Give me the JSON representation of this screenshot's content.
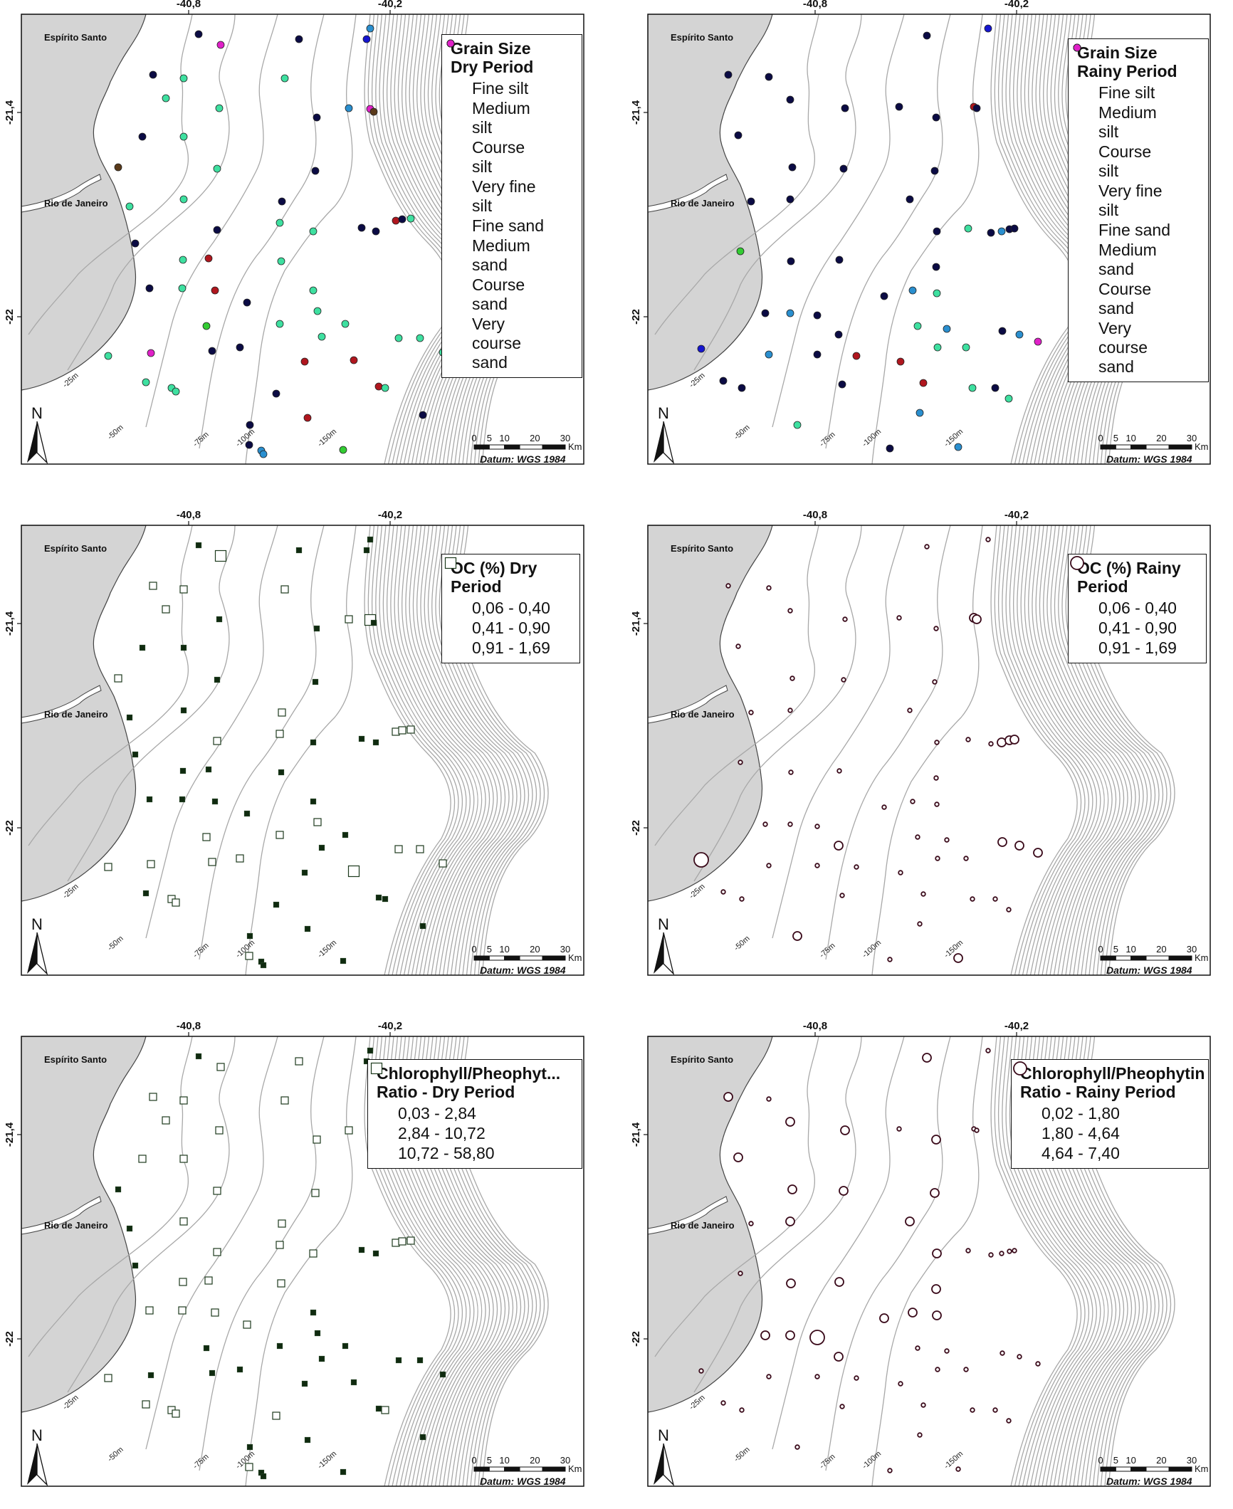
{
  "map_common": {
    "axis_top": [
      "-40,8",
      "-40,2"
    ],
    "axis_left": [
      "-21,4",
      "-22"
    ],
    "states": [
      "Espírito Santo",
      "Rio de Janeiro"
    ],
    "contours": [
      "-25m",
      "-50m",
      "-75m",
      "-100m",
      "-150m"
    ],
    "north_label": "N",
    "scale_ticks": [
      "0",
      "5",
      "10",
      "20",
      "30"
    ],
    "scale_unit": "Km",
    "datum": "Datum: WGS 1984",
    "colors": {
      "land": "#d4d4d4",
      "contour": "#a8a8a8",
      "frame": "#111111"
    }
  },
  "panels": [
    {
      "id": "grain-dry",
      "legend_title": "Grain Size\nDry Period",
      "legend_type": "color",
      "legend_items": [
        {
          "label": "Fine silt",
          "color": "#5a3a1a"
        },
        {
          "label": "Medium\nsilt",
          "color": "#1515d0"
        },
        {
          "label": "Course\nsilt",
          "color": "#33cc33"
        },
        {
          "label": "Very fine\nsilt",
          "color": "#2a8fcf"
        },
        {
          "label": "Fine sand",
          "color": "#b0161e"
        },
        {
          "label": "Medium\nsand",
          "color": "#3ee0a0"
        },
        {
          "label": "Course\nsand",
          "color": "#0b0b44"
        },
        {
          "label": "Very\ncourse\nsand",
          "color": "#e020c8"
        }
      ]
    },
    {
      "id": "grain-rainy",
      "legend_title": "Grain Size\nRainy Period",
      "legend_type": "color",
      "legend_items": [
        {
          "label": "Fine silt",
          "color": "#5a3a1a"
        },
        {
          "label": "Medium\nsilt",
          "color": "#1515d0"
        },
        {
          "label": "Course\nsilt",
          "color": "#33cc33"
        },
        {
          "label": "Very fine\nsilt",
          "color": "#2a8fcf"
        },
        {
          "label": "Fine sand",
          "color": "#b0161e"
        },
        {
          "label": "Medium\nsand",
          "color": "#3ee0a0"
        },
        {
          "label": "Course\nsand",
          "color": "#0b0b44"
        },
        {
          "label": "Very\ncourse\nsand",
          "color": "#e020c8"
        }
      ]
    },
    {
      "id": "oc-dry",
      "legend_title": "OC (%) Dry\nPeriod",
      "legend_type": "square",
      "legend_items": [
        {
          "label": "0,06 - 0,40",
          "size": "small"
        },
        {
          "label": "0,41 - 0,90",
          "size": "medium"
        },
        {
          "label": "0,91 - 1,69",
          "size": "large"
        }
      ]
    },
    {
      "id": "oc-rainy",
      "legend_title": "OC (%) Rainy\nPeriod",
      "legend_type": "circle",
      "legend_items": [
        {
          "label": "0,06 - 0,40",
          "size": "small"
        },
        {
          "label": "0,41 - 0,90",
          "size": "medium"
        },
        {
          "label": "0,91 - 1,69",
          "size": "large"
        }
      ]
    },
    {
      "id": "chl-dry",
      "legend_title": "Chlorophyll/Pheophyt...\nRatio - Dry Period",
      "legend_type": "square",
      "legend_items": [
        {
          "label": "0,03 - 2,84",
          "size": "small"
        },
        {
          "label": "2,84 - 10,72",
          "size": "medium"
        },
        {
          "label": "10,72 - 58,80",
          "size": "large"
        }
      ]
    },
    {
      "id": "chl-rainy",
      "legend_title": "Chlorophyll/Pheophytin\nRatio - Rainy Period",
      "legend_type": "circle",
      "legend_items": [
        {
          "label": "0,02 - 1,80",
          "size": "small"
        },
        {
          "label": "1,80 - 4,64",
          "size": "medium"
        },
        {
          "label": "4,64 - 7,40",
          "size": "large"
        }
      ]
    }
  ],
  "stations": {
    "dry": [
      {
        "pt": [
          279,
          48
        ],
        "g": 6,
        "oc": 0,
        "chl": 0
      },
      {
        "pt": [
          310,
          63
        ],
        "g": 7,
        "oc": 2,
        "chl": 1
      },
      {
        "pt": [
          420,
          55
        ],
        "g": 6,
        "oc": 0,
        "chl": 1
      },
      {
        "pt": [
          520,
          40
        ],
        "g": 3,
        "oc": 0,
        "chl": 0
      },
      {
        "pt": [
          515,
          55
        ],
        "g": 1,
        "oc": 0,
        "chl": 0
      },
      {
        "pt": [
          215,
          105
        ],
        "g": 6,
        "oc": 1,
        "chl": 1
      },
      {
        "pt": [
          258,
          110
        ],
        "g": 5,
        "oc": 1,
        "chl": 1
      },
      {
        "pt": [
          400,
          110
        ],
        "g": 5,
        "oc": 1,
        "chl": 1
      },
      {
        "pt": [
          233,
          138
        ],
        "g": 5,
        "oc": 1,
        "chl": 1
      },
      {
        "pt": [
          308,
          152
        ],
        "g": 5,
        "oc": 0,
        "chl": 1
      },
      {
        "pt": [
          445,
          165
        ],
        "g": 6,
        "oc": 0,
        "chl": 1
      },
      {
        "pt": [
          490,
          152
        ],
        "g": 3,
        "oc": 1,
        "chl": 1
      },
      {
        "pt": [
          520,
          153
        ],
        "g": 7,
        "oc": 2,
        "chl": 0
      },
      {
        "pt": [
          525,
          157
        ],
        "g": 0,
        "oc": 0,
        "chl": 0
      },
      {
        "pt": [
          200,
          192
        ],
        "g": 6,
        "oc": 0,
        "chl": 1
      },
      {
        "pt": [
          258,
          192
        ],
        "g": 5,
        "oc": 0,
        "chl": 1
      },
      {
        "pt": [
          166,
          235
        ],
        "g": 0,
        "oc": 1,
        "chl": 0
      },
      {
        "pt": [
          305,
          237
        ],
        "g": 5,
        "oc": 0,
        "chl": 1
      },
      {
        "pt": [
          443,
          240
        ],
        "g": 6,
        "oc": 0,
        "chl": 1
      },
      {
        "pt": [
          182,
          290
        ],
        "g": 5,
        "oc": 0,
        "chl": 0
      },
      {
        "pt": [
          258,
          280
        ],
        "g": 5,
        "oc": 0,
        "chl": 1
      },
      {
        "pt": [
          396,
          283
        ],
        "g": 6,
        "oc": 1,
        "chl": 1
      },
      {
        "pt": [
          190,
          342
        ],
        "g": 6,
        "oc": 0,
        "chl": 0
      },
      {
        "pt": [
          305,
          323
        ],
        "g": 6,
        "oc": 1,
        "chl": 1
      },
      {
        "pt": [
          393,
          313
        ],
        "g": 5,
        "oc": 1,
        "chl": 1
      },
      {
        "pt": [
          440,
          325
        ],
        "g": 5,
        "oc": 0,
        "chl": 1
      },
      {
        "pt": [
          508,
          320
        ],
        "g": 6,
        "oc": 0,
        "chl": 0
      },
      {
        "pt": [
          528,
          325
        ],
        "g": 6,
        "oc": 0,
        "chl": 0
      },
      {
        "pt": [
          556,
          310
        ],
        "g": 4,
        "oc": 1,
        "chl": 1
      },
      {
        "pt": [
          565,
          308
        ],
        "g": 6,
        "oc": 1,
        "chl": 1
      },
      {
        "pt": [
          577,
          307
        ],
        "g": 5,
        "oc": 1,
        "chl": 1
      },
      {
        "pt": [
          257,
          365
        ],
        "g": 5,
        "oc": 0,
        "chl": 1
      },
      {
        "pt": [
          293,
          363
        ],
        "g": 4,
        "oc": 0,
        "chl": 1
      },
      {
        "pt": [
          395,
          367
        ],
        "g": 5,
        "oc": 0,
        "chl": 1
      },
      {
        "pt": [
          210,
          405
        ],
        "g": 6,
        "oc": 0,
        "chl": 1
      },
      {
        "pt": [
          256,
          405
        ],
        "g": 5,
        "oc": 0,
        "chl": 1
      },
      {
        "pt": [
          302,
          408
        ],
        "g": 4,
        "oc": 0,
        "chl": 1
      },
      {
        "pt": [
          440,
          408
        ],
        "g": 5,
        "oc": 0,
        "chl": 0
      },
      {
        "pt": [
          446,
          437
        ],
        "g": 5,
        "oc": 1,
        "chl": 0
      },
      {
        "pt": [
          347,
          425
        ],
        "g": 6,
        "oc": 0,
        "chl": 1
      },
      {
        "pt": [
          290,
          458
        ],
        "g": 2,
        "oc": 1,
        "chl": 0
      },
      {
        "pt": [
          393,
          455
        ],
        "g": 5,
        "oc": 1,
        "chl": 0
      },
      {
        "pt": [
          452,
          473
        ],
        "g": 5,
        "oc": 0,
        "chl": 0
      },
      {
        "pt": [
          485,
          455
        ],
        "g": 5,
        "oc": 0,
        "chl": 0
      },
      {
        "pt": [
          560,
          475
        ],
        "g": 5,
        "oc": 1,
        "chl": 0
      },
      {
        "pt": [
          590,
          475
        ],
        "g": 5,
        "oc": 1,
        "chl": 0
      },
      {
        "pt": [
          152,
          500
        ],
        "g": 5,
        "oc": 1,
        "chl": 1
      },
      {
        "pt": [
          212,
          496
        ],
        "g": 7,
        "oc": 1,
        "chl": 0
      },
      {
        "pt": [
          298,
          493
        ],
        "g": 6,
        "oc": 1,
        "chl": 0
      },
      {
        "pt": [
          337,
          488
        ],
        "g": 6,
        "oc": 1,
        "chl": 0
      },
      {
        "pt": [
          428,
          508
        ],
        "g": 4,
        "oc": 0,
        "chl": 0
      },
      {
        "pt": [
          497,
          506
        ],
        "g": 4,
        "oc": 2,
        "chl": 0
      },
      {
        "pt": [
          622,
          495
        ],
        "g": 5,
        "oc": 1,
        "chl": 0
      },
      {
        "pt": [
          205,
          537
        ],
        "g": 5,
        "oc": 0,
        "chl": 1
      },
      {
        "pt": [
          241,
          545
        ],
        "g": 5,
        "oc": 1,
        "chl": 1
      },
      {
        "pt": [
          247,
          550
        ],
        "g": 5,
        "oc": 1,
        "chl": 1
      },
      {
        "pt": [
          388,
          553
        ],
        "g": 6,
        "oc": 0,
        "chl": 1
      },
      {
        "pt": [
          532,
          543
        ],
        "g": 4,
        "oc": 0,
        "chl": 0
      },
      {
        "pt": [
          541,
          545
        ],
        "g": 5,
        "oc": 0,
        "chl": 1
      },
      {
        "pt": [
          351,
          597
        ],
        "g": 6,
        "oc": 0,
        "chl": 0
      },
      {
        "pt": [
          432,
          587
        ],
        "g": 4,
        "oc": 0,
        "chl": 0
      },
      {
        "pt": [
          594,
          583
        ],
        "g": 6,
        "oc": 0,
        "chl": 0
      },
      {
        "pt": [
          367,
          633
        ],
        "g": 3,
        "oc": 0,
        "chl": 0
      },
      {
        "pt": [
          370,
          638
        ],
        "g": 3,
        "oc": 0,
        "chl": 0
      },
      {
        "pt": [
          482,
          632
        ],
        "g": 2,
        "oc": 0,
        "chl": 0
      },
      {
        "pt": [
          350,
          625
        ],
        "g": 6,
        "oc": 1,
        "chl": 1
      }
    ],
    "rainy": [
      {
        "pt": [
          422,
          50
        ],
        "g": 6,
        "oc": 0,
        "chl": 1
      },
      {
        "pt": [
          508,
          40
        ],
        "g": 1,
        "oc": 0,
        "chl": 0
      },
      {
        "pt": [
          143,
          105
        ],
        "g": 6,
        "oc": 0,
        "chl": 1
      },
      {
        "pt": [
          200,
          108
        ],
        "g": 6,
        "oc": 0,
        "chl": 0
      },
      {
        "pt": [
          230,
          140
        ],
        "g": 6,
        "oc": 0,
        "chl": 1
      },
      {
        "pt": [
          307,
          152
        ],
        "g": 6,
        "oc": 0,
        "chl": 1
      },
      {
        "pt": [
          383,
          150
        ],
        "g": 6,
        "oc": 0,
        "chl": 0
      },
      {
        "pt": [
          435,
          165
        ],
        "g": 6,
        "oc": 0,
        "chl": 1
      },
      {
        "pt": [
          488,
          150
        ],
        "g": 4,
        "oc": 1,
        "chl": 0
      },
      {
        "pt": [
          492,
          152
        ],
        "g": 6,
        "oc": 1,
        "chl": 0
      },
      {
        "pt": [
          157,
          190
        ],
        "g": 6,
        "oc": 0,
        "chl": 1
      },
      {
        "pt": [
          233,
          235
        ],
        "g": 6,
        "oc": 0,
        "chl": 1
      },
      {
        "pt": [
          305,
          237
        ],
        "g": 6,
        "oc": 0,
        "chl": 1
      },
      {
        "pt": [
          433,
          240
        ],
        "g": 6,
        "oc": 0,
        "chl": 1
      },
      {
        "pt": [
          175,
          283
        ],
        "g": 6,
        "oc": 0,
        "chl": 0
      },
      {
        "pt": [
          230,
          280
        ],
        "g": 6,
        "oc": 0,
        "chl": 1
      },
      {
        "pt": [
          398,
          280
        ],
        "g": 6,
        "oc": 0,
        "chl": 1
      },
      {
        "pt": [
          436,
          325
        ],
        "g": 6,
        "oc": 0,
        "chl": 1
      },
      {
        "pt": [
          512,
          327
        ],
        "g": 6,
        "oc": 0,
        "chl": 0
      },
      {
        "pt": [
          527,
          325
        ],
        "g": 3,
        "oc": 1,
        "chl": 0
      },
      {
        "pt": [
          538,
          322
        ],
        "g": 6,
        "oc": 1,
        "chl": 0
      },
      {
        "pt": [
          545,
          321
        ],
        "g": 6,
        "oc": 1,
        "chl": 0
      },
      {
        "pt": [
          480,
          321
        ],
        "g": 5,
        "oc": 0,
        "chl": 0
      },
      {
        "pt": [
          160,
          353
        ],
        "g": 2,
        "oc": 0,
        "chl": 0
      },
      {
        "pt": [
          231,
          367
        ],
        "g": 6,
        "oc": 0,
        "chl": 1
      },
      {
        "pt": [
          299,
          365
        ],
        "g": 6,
        "oc": 0,
        "chl": 1
      },
      {
        "pt": [
          435,
          375
        ],
        "g": 6,
        "oc": 0,
        "chl": 1
      },
      {
        "pt": [
          402,
          408
        ],
        "g": 3,
        "oc": 0,
        "chl": 1
      },
      {
        "pt": [
          436,
          412
        ],
        "g": 5,
        "oc": 0,
        "chl": 1
      },
      {
        "pt": [
          362,
          416
        ],
        "g": 6,
        "oc": 0,
        "chl": 1
      },
      {
        "pt": [
          230,
          440
        ],
        "g": 3,
        "oc": 0,
        "chl": 1
      },
      {
        "pt": [
          195,
          440
        ],
        "g": 6,
        "oc": 0,
        "chl": 1
      },
      {
        "pt": [
          268,
          443
        ],
        "g": 6,
        "oc": 0,
        "chl": 2
      },
      {
        "pt": [
          298,
          470
        ],
        "g": 6,
        "oc": 1,
        "chl": 1
      },
      {
        "pt": [
          409,
          458
        ],
        "g": 5,
        "oc": 0,
        "chl": 0
      },
      {
        "pt": [
          450,
          462
        ],
        "g": 3,
        "oc": 0,
        "chl": 0
      },
      {
        "pt": [
          528,
          465
        ],
        "g": 6,
        "oc": 1,
        "chl": 0
      },
      {
        "pt": [
          552,
          470
        ],
        "g": 3,
        "oc": 1,
        "chl": 0
      },
      {
        "pt": [
          578,
          480
        ],
        "g": 7,
        "oc": 1,
        "chl": 0
      },
      {
        "pt": [
          105,
          490
        ],
        "g": 1,
        "oc": 2,
        "chl": 0
      },
      {
        "pt": [
          200,
          498
        ],
        "g": 3,
        "oc": 0,
        "chl": 0
      },
      {
        "pt": [
          268,
          498
        ],
        "g": 6,
        "oc": 0,
        "chl": 0
      },
      {
        "pt": [
          323,
          500
        ],
        "g": 4,
        "oc": 0,
        "chl": 0
      },
      {
        "pt": [
          385,
          508
        ],
        "g": 4,
        "oc": 0,
        "chl": 0
      },
      {
        "pt": [
          437,
          488
        ],
        "g": 5,
        "oc": 0,
        "chl": 0
      },
      {
        "pt": [
          477,
          488
        ],
        "g": 5,
        "oc": 0,
        "chl": 0
      },
      {
        "pt": [
          136,
          535
        ],
        "g": 6,
        "oc": 0,
        "chl": 0
      },
      {
        "pt": [
          162,
          545
        ],
        "g": 6,
        "oc": 0,
        "chl": 0
      },
      {
        "pt": [
          303,
          540
        ],
        "g": 6,
        "oc": 0,
        "chl": 0
      },
      {
        "pt": [
          417,
          538
        ],
        "g": 4,
        "oc": 0,
        "chl": 0
      },
      {
        "pt": [
          486,
          545
        ],
        "g": 5,
        "oc": 0,
        "chl": 0
      },
      {
        "pt": [
          537,
          560
        ],
        "g": 5,
        "oc": 0,
        "chl": 0
      },
      {
        "pt": [
          240,
          597
        ],
        "g": 5,
        "oc": 1,
        "chl": 0
      },
      {
        "pt": [
          412,
          580
        ],
        "g": 3,
        "oc": 0,
        "chl": 0
      },
      {
        "pt": [
          466,
          628
        ],
        "g": 3,
        "oc": 1,
        "chl": 0
      },
      {
        "pt": [
          370,
          630
        ],
        "g": 6,
        "oc": 0,
        "chl": 0
      },
      {
        "pt": [
          518,
          545
        ],
        "g": 6,
        "oc": 0,
        "chl": 0
      }
    ]
  }
}
